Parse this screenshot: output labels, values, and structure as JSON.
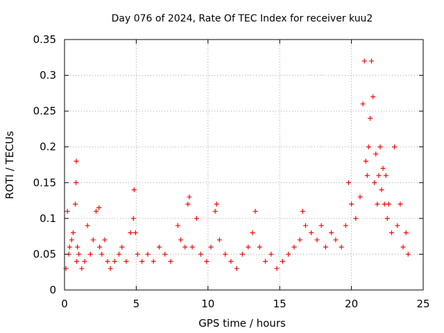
{
  "chart_data": {
    "type": "scatter",
    "title": "Day 076 of 2024, Rate Of TEC Index for receiver kuu2",
    "xlabel": "GPS time / hours",
    "ylabel": "ROTI / TECUs",
    "xlim": [
      0,
      25
    ],
    "ylim": [
      0,
      0.35
    ],
    "xticks": [
      0,
      5,
      10,
      15,
      20,
      25
    ],
    "xtick_labels": [
      "0",
      "5",
      "10",
      "15",
      "20",
      "25"
    ],
    "yticks": [
      0,
      0.05,
      0.1,
      0.15,
      0.2,
      0.25,
      0.3,
      0.35
    ],
    "ytick_labels": [
      "0",
      "0.05",
      "0.1",
      "0.15",
      "0.2",
      "0.25",
      "0.3",
      "0.35"
    ],
    "grid": true,
    "marker": "+",
    "color": "#ff0000",
    "series": [
      {
        "x": [
          0.1,
          0.2,
          0.3,
          0.35,
          0.5,
          0.6,
          0.75,
          0.8,
          0.82,
          0.85,
          0.9,
          1.0,
          1.2,
          1.4,
          1.6,
          1.8,
          2.0,
          2.2,
          2.4,
          2.45,
          2.6,
          2.8,
          3.0,
          3.2,
          3.5,
          3.8,
          4.0,
          4.3,
          4.6,
          4.8,
          4.85,
          4.95,
          5.1,
          5.4,
          5.8,
          6.2,
          6.6,
          7.0,
          7.4,
          7.9,
          8.1,
          8.4,
          8.6,
          8.7,
          8.9,
          9.2,
          9.5,
          9.9,
          10.2,
          10.5,
          10.6,
          10.8,
          11.2,
          11.6,
          12.0,
          12.4,
          12.8,
          13.1,
          13.3,
          13.6,
          14.0,
          14.4,
          14.8,
          15.2,
          15.6,
          16.0,
          16.4,
          16.6,
          16.8,
          17.2,
          17.6,
          17.9,
          18.2,
          18.6,
          18.9,
          19.3,
          19.6,
          19.8,
          20.0,
          20.3,
          20.6,
          20.8,
          20.9,
          21.0,
          21.1,
          21.2,
          21.3,
          21.4,
          21.5,
          21.6,
          21.7,
          21.8,
          21.9,
          22.0,
          22.1,
          22.2,
          22.3,
          22.4,
          22.5,
          22.6,
          22.8,
          23.0,
          23.2,
          23.4,
          23.6,
          23.8,
          23.95
        ],
        "y": [
          0.03,
          0.11,
          0.05,
          0.06,
          0.07,
          0.08,
          0.12,
          0.15,
          0.18,
          0.04,
          0.06,
          0.05,
          0.03,
          0.04,
          0.09,
          0.05,
          0.07,
          0.11,
          0.115,
          0.06,
          0.05,
          0.07,
          0.04,
          0.03,
          0.04,
          0.05,
          0.06,
          0.04,
          0.08,
          0.1,
          0.14,
          0.08,
          0.05,
          0.04,
          0.05,
          0.04,
          0.06,
          0.05,
          0.04,
          0.09,
          0.07,
          0.06,
          0.12,
          0.13,
          0.06,
          0.1,
          0.05,
          0.04,
          0.06,
          0.11,
          0.12,
          0.07,
          0.05,
          0.04,
          0.03,
          0.05,
          0.06,
          0.08,
          0.11,
          0.06,
          0.04,
          0.05,
          0.03,
          0.04,
          0.05,
          0.06,
          0.07,
          0.11,
          0.09,
          0.08,
          0.07,
          0.09,
          0.06,
          0.08,
          0.07,
          0.06,
          0.09,
          0.15,
          0.12,
          0.1,
          0.13,
          0.26,
          0.32,
          0.18,
          0.16,
          0.2,
          0.24,
          0.32,
          0.27,
          0.15,
          0.19,
          0.12,
          0.16,
          0.2,
          0.14,
          0.17,
          0.12,
          0.16,
          0.1,
          0.12,
          0.08,
          0.2,
          0.09,
          0.12,
          0.06,
          0.08,
          0.05
        ]
      }
    ]
  }
}
